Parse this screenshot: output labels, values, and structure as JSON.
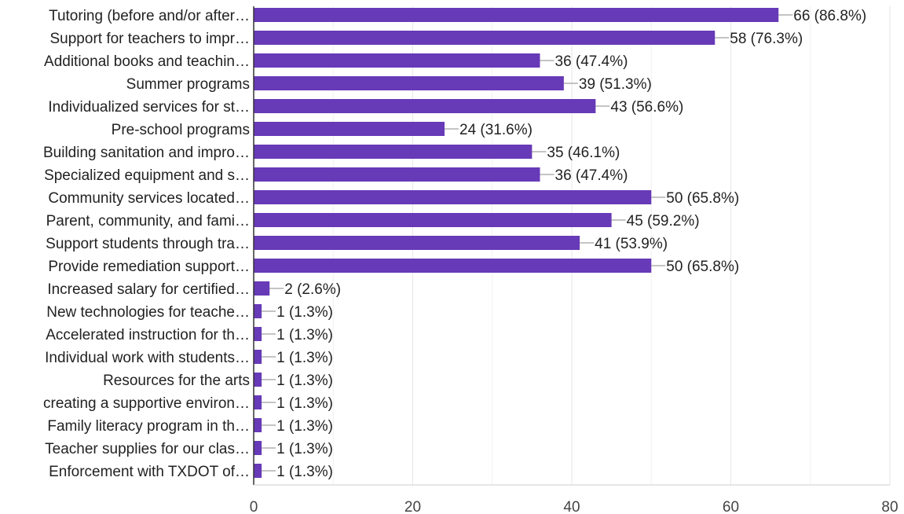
{
  "chart_data": {
    "type": "bar",
    "orientation": "horizontal",
    "title": "",
    "xlabel": "",
    "ylabel": "",
    "xlim": [
      0,
      80
    ],
    "ticks": [
      0,
      20,
      40,
      60,
      80
    ],
    "grid": true,
    "bar_color": "#673ab7",
    "categories": [
      "Tutoring (before and/or after…",
      "Support for teachers to impr…",
      "Additional books and teachin…",
      "Summer programs",
      "Individualized services for st…",
      "Pre-school programs",
      "Building sanitation and impro…",
      "Specialized equipment and s…",
      "Community services located…",
      "Parent, community, and fami…",
      "Support students through tra…",
      "Provide remediation support…",
      "Increased salary for certified…",
      "New technologies for teache…",
      "Accelerated instruction for th…",
      "Individual work with students…",
      "Resources for the arts",
      "creating a supportive environ…",
      "Family literacy program in th…",
      "Teacher supplies for our clas…",
      "Enforcement with TXDOT of…"
    ],
    "values": [
      66,
      58,
      36,
      39,
      43,
      24,
      35,
      36,
      50,
      45,
      41,
      50,
      2,
      1,
      1,
      1,
      1,
      1,
      1,
      1,
      1
    ],
    "data_labels": [
      "66 (86.8%)",
      "58 (76.3%)",
      "36 (47.4%)",
      "39 (51.3%)",
      "43 (56.6%)",
      "24 (31.6%)",
      "35 (46.1%)",
      "36 (47.4%)",
      "50 (65.8%)",
      "45 (59.2%)",
      "41 (53.9%)",
      "50 (65.8%)",
      "2 (2.6%)",
      "1 (1.3%)",
      "1 (1.3%)",
      "1 (1.3%)",
      "1 (1.3%)",
      "1 (1.3%)",
      "1 (1.3%)",
      "1 (1.3%)",
      "1 (1.3%)"
    ]
  }
}
